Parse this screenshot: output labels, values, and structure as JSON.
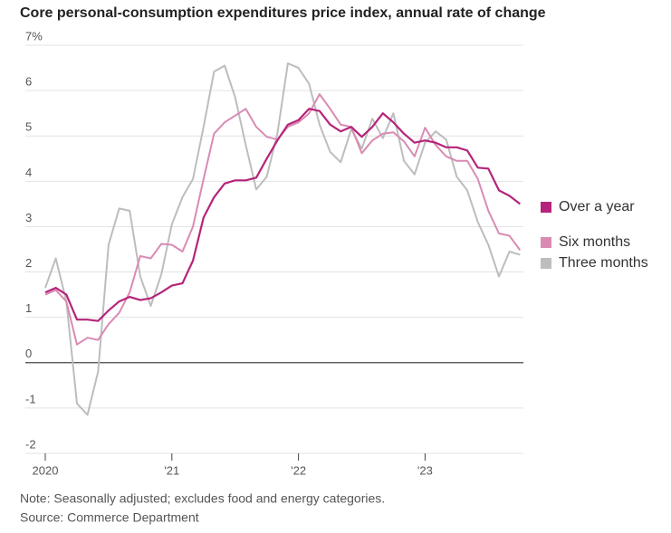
{
  "chart_data": {
    "type": "line",
    "title": "Core personal-consumption expenditures price index, annual rate of change",
    "note": "Note: Seasonally adjusted; excludes food and energy categories.",
    "source": "Source: Commerce Department",
    "categories": [
      "2020",
      null,
      null,
      null,
      null,
      null,
      null,
      null,
      null,
      null,
      null,
      null,
      "'21",
      null,
      null,
      null,
      null,
      null,
      null,
      null,
      null,
      null,
      null,
      null,
      "'22",
      null,
      null,
      null,
      null,
      null,
      null,
      null,
      null,
      null,
      null,
      null,
      "'23",
      null,
      null,
      null,
      null,
      null,
      null,
      null,
      null,
      null
    ],
    "series": [
      {
        "name": "Three months",
        "color": "#bdbdbd",
        "values": [
          1.65,
          2.3,
          1.35,
          -0.9,
          -1.15,
          -0.2,
          2.6,
          3.4,
          3.35,
          1.9,
          1.25,
          1.95,
          3.05,
          3.65,
          4.05,
          5.2,
          6.42,
          6.55,
          5.85,
          4.8,
          3.82,
          4.1,
          5.05,
          6.6,
          6.5,
          6.15,
          5.25,
          4.65,
          4.42,
          5.15,
          4.72,
          5.38,
          4.95,
          5.5,
          4.45,
          4.15,
          4.85,
          5.1,
          4.92,
          4.1,
          3.8,
          3.1,
          2.6,
          1.9,
          2.45,
          2.38
        ]
      },
      {
        "name": "Six months",
        "color": "#d98bb3",
        "values": [
          1.5,
          1.6,
          1.35,
          0.4,
          0.55,
          0.5,
          0.85,
          1.1,
          1.55,
          2.35,
          2.3,
          2.62,
          2.6,
          2.45,
          3.0,
          4.05,
          5.05,
          5.3,
          5.45,
          5.6,
          5.2,
          4.98,
          4.92,
          5.2,
          5.3,
          5.5,
          5.92,
          5.6,
          5.25,
          5.2,
          4.62,
          4.9,
          5.05,
          5.08,
          4.88,
          4.55,
          5.18,
          4.8,
          4.55,
          4.45,
          4.45,
          4.05,
          3.35,
          2.85,
          2.8,
          2.48
        ]
      },
      {
        "name": "Over a year",
        "color": "#b5247a",
        "values": [
          1.55,
          1.65,
          1.5,
          0.95,
          0.95,
          0.92,
          1.15,
          1.35,
          1.45,
          1.38,
          1.42,
          1.55,
          1.7,
          1.75,
          2.25,
          3.2,
          3.65,
          3.95,
          4.02,
          4.02,
          4.08,
          4.5,
          4.9,
          5.25,
          5.35,
          5.6,
          5.55,
          5.25,
          5.1,
          5.2,
          4.98,
          5.2,
          5.5,
          5.3,
          5.05,
          4.85,
          4.9,
          4.85,
          4.75,
          4.75,
          4.68,
          4.3,
          4.28,
          3.8,
          3.68,
          3.5
        ]
      }
    ],
    "ylim": [
      -2,
      7
    ],
    "yticks": [
      -2,
      -1,
      0,
      1,
      2,
      3,
      4,
      5,
      6,
      {
        "value": 7,
        "label": "7%"
      }
    ],
    "grid": true
  }
}
